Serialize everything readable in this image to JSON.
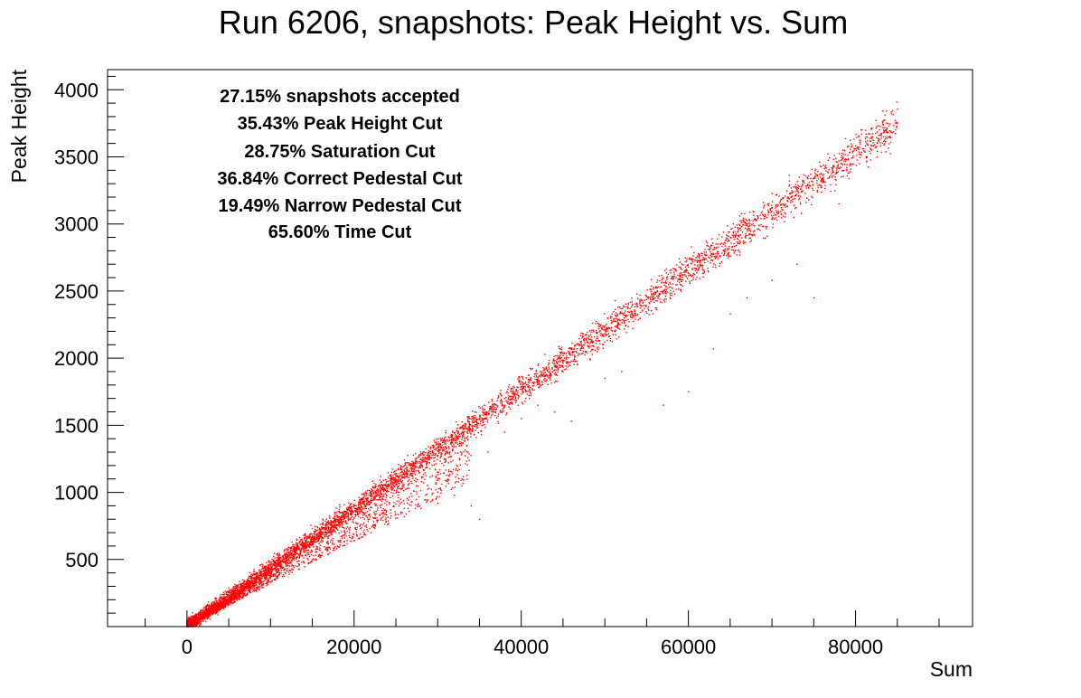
{
  "chart_data": {
    "type": "scatter",
    "title": "Run 6206, snapshots: Peak Height vs. Sum",
    "xlabel": "Sum",
    "ylabel": "Peak Height",
    "xlim": [
      -9500,
      94000
    ],
    "ylim": [
      0,
      4150
    ],
    "xticks": [
      0,
      20000,
      40000,
      60000,
      80000
    ],
    "xtick_labels": [
      "0",
      "20000",
      "40000",
      "60000",
      "80000"
    ],
    "yticks": [
      500,
      1000,
      1500,
      2000,
      2500,
      3000,
      3500,
      4000
    ],
    "ytick_labels": [
      "500",
      "1000",
      "1500",
      "2000",
      "2500",
      "3000",
      "3500",
      "4000"
    ],
    "grid": false,
    "legend": "none",
    "marker_color": "#ff0000",
    "annotations": [
      "27.15% snapshots accepted",
      "35.43% Peak Height Cut",
      "28.75% Saturation Cut",
      "36.84% Correct Pedestal Cut",
      "19.49% Narrow Pedestal Cut",
      "65.60% Time Cut"
    ],
    "series": [
      {
        "values_description_main_band": "dense linear band, peak height ≈ 0.0445 × sum, from (0, 0) to (85000, 3750)",
        "points": [
          [
            0,
            0
          ],
          [
            2000,
            90
          ],
          [
            5000,
            225
          ],
          [
            8000,
            360
          ],
          [
            10000,
            450
          ],
          [
            12000,
            540
          ],
          [
            15000,
            670
          ],
          [
            18000,
            800
          ],
          [
            20000,
            900
          ],
          [
            22000,
            990
          ],
          [
            25000,
            1120
          ],
          [
            28000,
            1250
          ],
          [
            30000,
            1340
          ],
          [
            33000,
            1480
          ],
          [
            35000,
            1570
          ],
          [
            38000,
            1700
          ],
          [
            40000,
            1790
          ],
          [
            43000,
            1930
          ],
          [
            45000,
            2020
          ],
          [
            48000,
            2150
          ],
          [
            50000,
            2240
          ],
          [
            53000,
            2370
          ],
          [
            55000,
            2460
          ],
          [
            58000,
            2590
          ],
          [
            60000,
            2680
          ],
          [
            63000,
            2810
          ],
          [
            65000,
            2900
          ],
          [
            68000,
            3030
          ],
          [
            70000,
            3120
          ],
          [
            73000,
            3250
          ],
          [
            75000,
            3340
          ],
          [
            78000,
            3470
          ],
          [
            80000,
            3560
          ],
          [
            82000,
            3650
          ],
          [
            84000,
            3730
          ],
          [
            85000,
            3750
          ]
        ]
      },
      {
        "values_description_lower_scatter": "sparse points below the main band",
        "points": [
          [
            10000,
            330
          ],
          [
            14000,
            480
          ],
          [
            16000,
            520
          ],
          [
            18000,
            600
          ],
          [
            20000,
            640
          ],
          [
            22000,
            700
          ],
          [
            24000,
            760
          ],
          [
            26000,
            820
          ],
          [
            28000,
            880
          ],
          [
            30000,
            920
          ],
          [
            32000,
            980
          ],
          [
            34000,
            900
          ],
          [
            35000,
            800
          ],
          [
            36000,
            1300
          ],
          [
            38000,
            1450
          ],
          [
            40000,
            1550
          ],
          [
            42000,
            1650
          ],
          [
            44000,
            1600
          ],
          [
            46000,
            1530
          ],
          [
            50000,
            1850
          ],
          [
            52000,
            1900
          ],
          [
            57000,
            1650
          ],
          [
            60000,
            1750
          ],
          [
            63000,
            2070
          ],
          [
            65000,
            2330
          ],
          [
            67000,
            2450
          ],
          [
            70000,
            2580
          ],
          [
            73000,
            2700
          ],
          [
            75000,
            2450
          ],
          [
            78000,
            3150
          ]
        ]
      }
    ]
  }
}
